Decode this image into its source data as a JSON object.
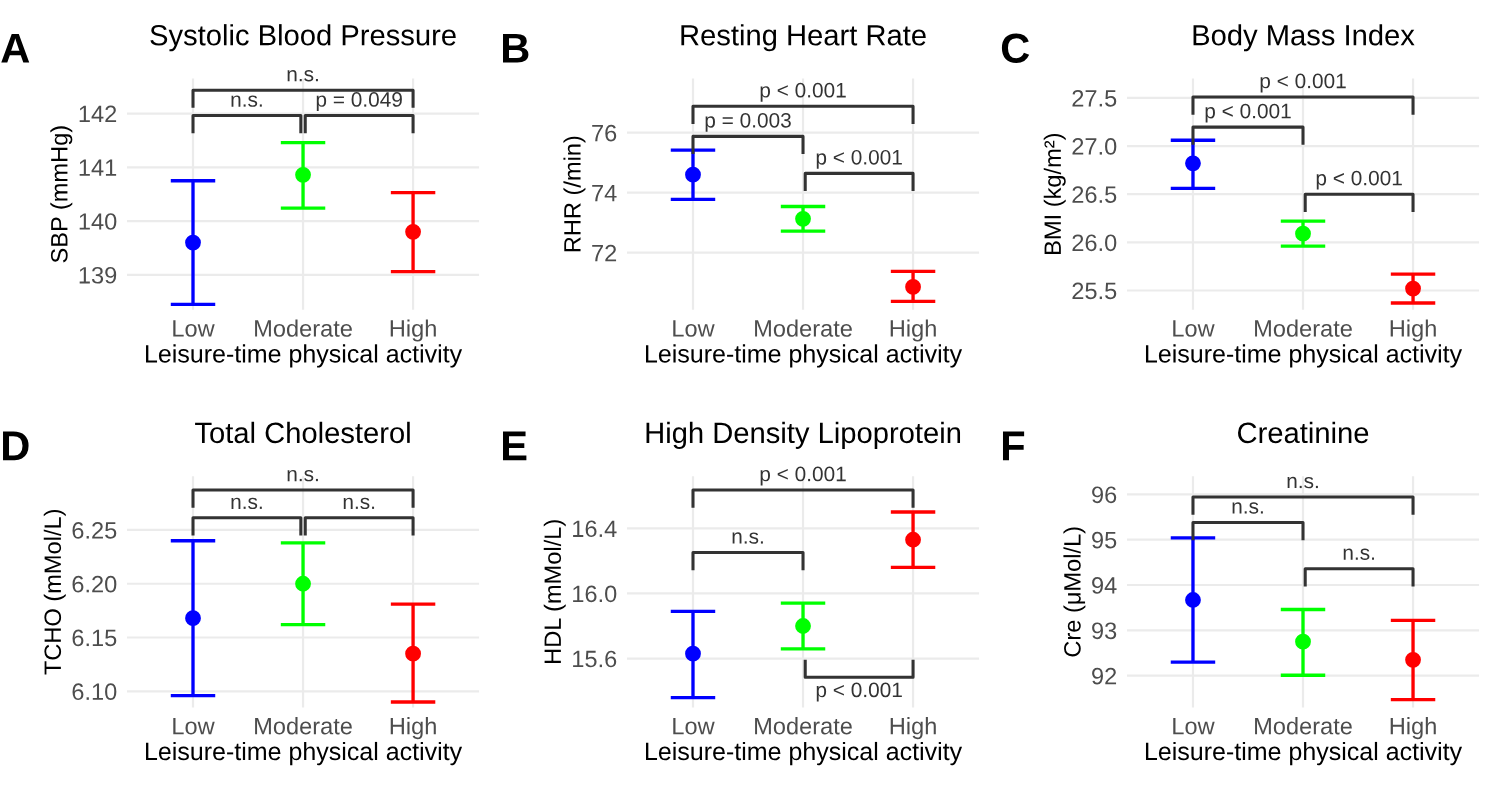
{
  "chart_data": [
    {
      "type": "scatter",
      "title": "Systolic Blood Pressure",
      "xlabel": "Leisure-time physical activity",
      "ylabel": "SBP (mmHg)",
      "categories": [
        "Low",
        "Moderate",
        "High"
      ],
      "values": [
        139.6,
        140.86,
        139.8
      ],
      "errors": [
        [
          138.45,
          140.75
        ],
        [
          140.24,
          141.46
        ],
        [
          139.06,
          140.53
        ]
      ],
      "colors": [
        "#0000ff",
        "#00ff00",
        "#ff0000"
      ],
      "ylim": [
        138.35,
        142.65
      ],
      "yticks": [
        139,
        140,
        141,
        142
      ],
      "grid": true,
      "marker": "circle",
      "annotations": [
        "A",
        "n.s.",
        "p = 0.049",
        "n.s."
      ]
    },
    {
      "type": "scatter",
      "title": "Resting Heart Rate",
      "xlabel": "Leisure-time physical activity",
      "ylabel": "RHR (/min)",
      "categories": [
        "Low",
        "Moderate",
        "High"
      ],
      "values": [
        74.6,
        73.13,
        70.86
      ],
      "errors": [
        [
          73.78,
          75.42
        ],
        [
          72.72,
          73.54
        ],
        [
          70.38,
          71.38
        ]
      ],
      "colors": [
        "#0000ff",
        "#00ff00",
        "#ff0000"
      ],
      "ylim": [
        70.1,
        77.8
      ],
      "yticks": [
        72,
        74,
        76
      ],
      "grid": true,
      "marker": "circle",
      "annotations": [
        "B",
        "p = 0.003",
        "p < 0.001",
        "p < 0.001"
      ]
    },
    {
      "type": "scatter",
      "title": "Body Mass Index",
      "xlabel": "Leisure-time physical activity",
      "ylabel": "BMI (kg/m²)",
      "categories": [
        "Low",
        "Moderate",
        "High"
      ],
      "values": [
        26.82,
        26.09,
        25.52
      ],
      "errors": [
        [
          26.56,
          27.06
        ],
        [
          25.96,
          26.22
        ],
        [
          25.37,
          25.67
        ]
      ],
      "colors": [
        "#0000ff",
        "#00ff00",
        "#ff0000"
      ],
      "ylim": [
        25.3,
        27.7
      ],
      "yticks": [
        {
          "value": 25.5,
          "label": "25.5"
        },
        {
          "value": 26.0,
          "label": "26.0"
        },
        {
          "value": 26.5,
          "label": "26.5"
        },
        {
          "value": 27.0,
          "label": "27.0"
        },
        {
          "value": 27.5,
          "label": "27.5"
        }
      ],
      "grid": true,
      "marker": "circle",
      "annotations": [
        "C",
        "p < 0.001",
        "p < 0.001",
        "p < 0.001"
      ]
    },
    {
      "type": "scatter",
      "title": "Total Cholesterol",
      "xlabel": "Leisure-time physical activity",
      "ylabel": "TCHO (mMol/L)",
      "categories": [
        "Low",
        "Moderate",
        "High"
      ],
      "values": [
        6.168,
        6.2,
        6.135
      ],
      "errors": [
        [
          6.096,
          6.24
        ],
        [
          6.162,
          6.238
        ],
        [
          6.09,
          6.181
        ]
      ],
      "colors": [
        "#0000ff",
        "#00ff00",
        "#ff0000"
      ],
      "ylim": [
        6.085,
        6.3
      ],
      "yticks": [
        {
          "value": 6.1,
          "label": "6.10"
        },
        {
          "value": 6.15,
          "label": "6.15"
        },
        {
          "value": 6.2,
          "label": "6.20"
        },
        {
          "value": 6.25,
          "label": "6.25"
        }
      ],
      "grid": true,
      "marker": "circle",
      "annotations": [
        "D",
        "n.s.",
        "n.s.",
        "n.s."
      ]
    },
    {
      "type": "scatter",
      "title": "High Density Lipoprotein",
      "xlabel": "Leisure-time physical activity",
      "ylabel": "HDL (mMol/L)",
      "categories": [
        "Low",
        "Moderate",
        "High"
      ],
      "values": [
        15.63,
        15.8,
        16.33
      ],
      "errors": [
        [
          15.36,
          15.89
        ],
        [
          15.66,
          15.94
        ],
        [
          16.16,
          16.5
        ]
      ],
      "colors": [
        "#0000ff",
        "#00ff00",
        "#ff0000"
      ],
      "ylim": [
        15.3,
        16.72
      ],
      "yticks": [
        15.6,
        {
          "value": 16.0,
          "label": "16.0"
        },
        16.4
      ],
      "grid": true,
      "marker": "circle",
      "annotations": [
        "E",
        "n.s.",
        "p < 0.001",
        "p < 0.001"
      ]
    },
    {
      "type": "scatter",
      "title": "Creatinine",
      "xlabel": "Leisure-time physical activity",
      "ylabel": "Cre (μMol/L)",
      "categories": [
        "Low",
        "Moderate",
        "High"
      ],
      "values": [
        93.67,
        92.75,
        92.35
      ],
      "errors": [
        [
          92.3,
          95.04
        ],
        [
          92.01,
          93.46
        ],
        [
          91.47,
          93.22
        ]
      ],
      "colors": [
        "#0000ff",
        "#00ff00",
        "#ff0000"
      ],
      "ylim": [
        91.3,
        96.4
      ],
      "yticks": [
        92,
        93,
        94,
        95,
        96
      ],
      "grid": true,
      "marker": "circle",
      "annotations": [
        "F",
        "n.s.",
        "n.s.",
        "n.s."
      ]
    }
  ]
}
